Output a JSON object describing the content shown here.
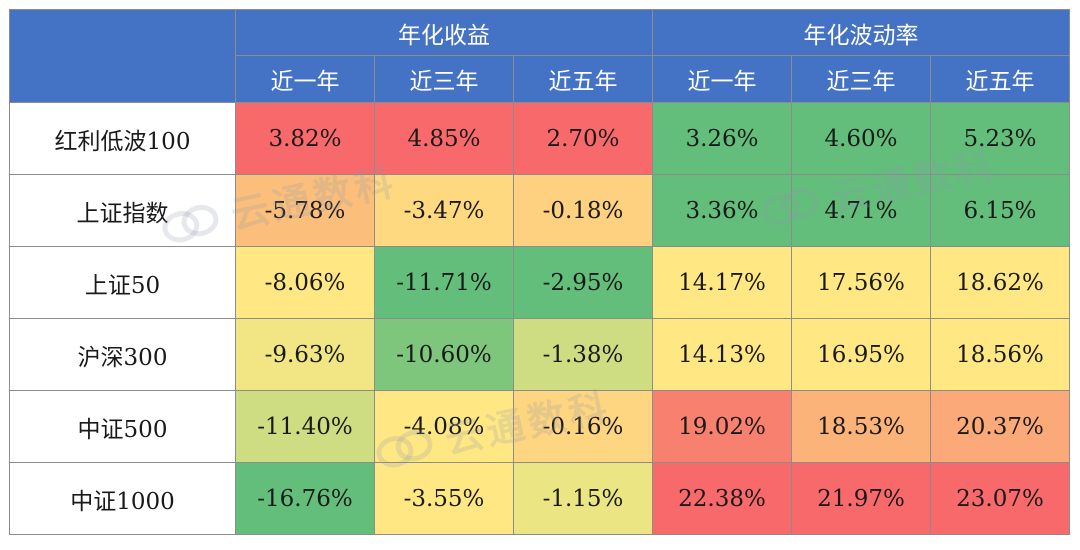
{
  "header": {
    "group_return": "年化收益",
    "group_vol": "年化波动率",
    "periods": [
      "近一年",
      "近三年",
      "近五年"
    ]
  },
  "rows": [
    {
      "name": "红利低波100",
      "ret": [
        "3.82%",
        "4.85%",
        "2.70%"
      ],
      "vol": [
        "3.26%",
        "4.60%",
        "5.23%"
      ]
    },
    {
      "name": "上证指数",
      "ret": [
        "-5.78%",
        "-3.47%",
        "-0.18%"
      ],
      "vol": [
        "3.36%",
        "4.71%",
        "6.15%"
      ]
    },
    {
      "name": "上证50",
      "ret": [
        "-8.06%",
        "-11.71%",
        "-2.95%"
      ],
      "vol": [
        "14.17%",
        "17.56%",
        "18.62%"
      ]
    },
    {
      "name": "沪深300",
      "ret": [
        "-9.63%",
        "-10.60%",
        "-1.38%"
      ],
      "vol": [
        "14.13%",
        "16.95%",
        "18.56%"
      ]
    },
    {
      "name": "中证500",
      "ret": [
        "-11.40%",
        "-4.08%",
        "-0.16%"
      ],
      "vol": [
        "19.02%",
        "18.53%",
        "20.37%"
      ]
    },
    {
      "name": "中证1000",
      "ret": [
        "-16.76%",
        "-3.55%",
        "-1.15%"
      ],
      "vol": [
        "22.38%",
        "21.97%",
        "23.07%"
      ]
    }
  ],
  "cell_colors": [
    [
      "#f8696b",
      "#f8696b",
      "#f8696b",
      "#63be7b",
      "#63be7b",
      "#63be7b"
    ],
    [
      "#fbbf7b",
      "#fed980",
      "#fdd17f",
      "#63be7b",
      "#63be7b",
      "#63be7b"
    ],
    [
      "#ffe884",
      "#63be7b",
      "#63be7b",
      "#ffe884",
      "#ffe884",
      "#ffe884"
    ],
    [
      "#f1e683",
      "#7dc67c",
      "#cfdd82",
      "#ffe884",
      "#ffe884",
      "#ffe884"
    ],
    [
      "#cfdd82",
      "#ffe884",
      "#fed580",
      "#f8806f",
      "#fcb37a",
      "#fba978"
    ],
    [
      "#63be7b",
      "#ffe884",
      "#ece583",
      "#f8696b",
      "#f8696b",
      "#f8696b"
    ]
  ],
  "header_color": "#4472c4",
  "watermark": {
    "text": "云通数科",
    "icon": "cloud-logo-icon"
  }
}
